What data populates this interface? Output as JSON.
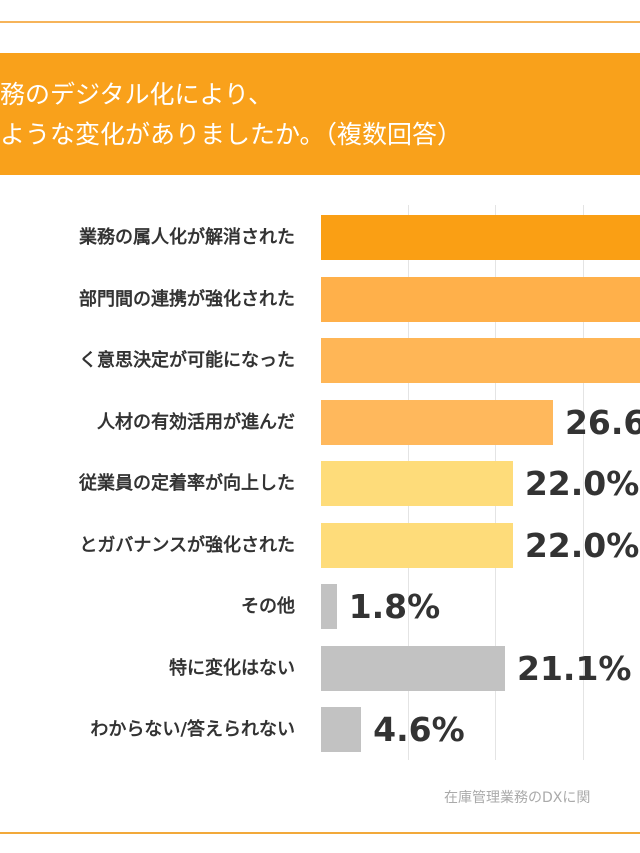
{
  "header": {
    "line1": "務のデジタル化により、",
    "line2": "ような変化がありましたか。（複数回答）"
  },
  "chart_data": {
    "type": "bar",
    "orientation": "horizontal",
    "categories": [
      "業務の属人化が解消された",
      "部門間の連携が強化された",
      "く意思決定が可能になった",
      "人材の有効活用が進んだ",
      "従業員の定着率が向上した",
      "とガバナンスが強化された",
      "その他",
      "特に変化はない",
      "わからない/答えられない"
    ],
    "values": [
      null,
      null,
      null,
      26.6,
      22.0,
      22.0,
      1.8,
      21.1,
      4.6
    ],
    "value_labels": [
      "",
      "",
      "",
      "26.6",
      "22.0%",
      "22.0%",
      "1.8%",
      "21.1%",
      "4.6%"
    ],
    "colors": [
      "#fa9f14",
      "#ffb04a",
      "#ffb656",
      "#ffb85c",
      "#fedc7a",
      "#fedc7a",
      "#c2c2c2",
      "#c2c2c2",
      "#c2c2c2"
    ],
    "xlim": [
      0,
      40
    ],
    "grid": true,
    "unit": "%"
  },
  "source": "在庫管理業務のDXに関"
}
